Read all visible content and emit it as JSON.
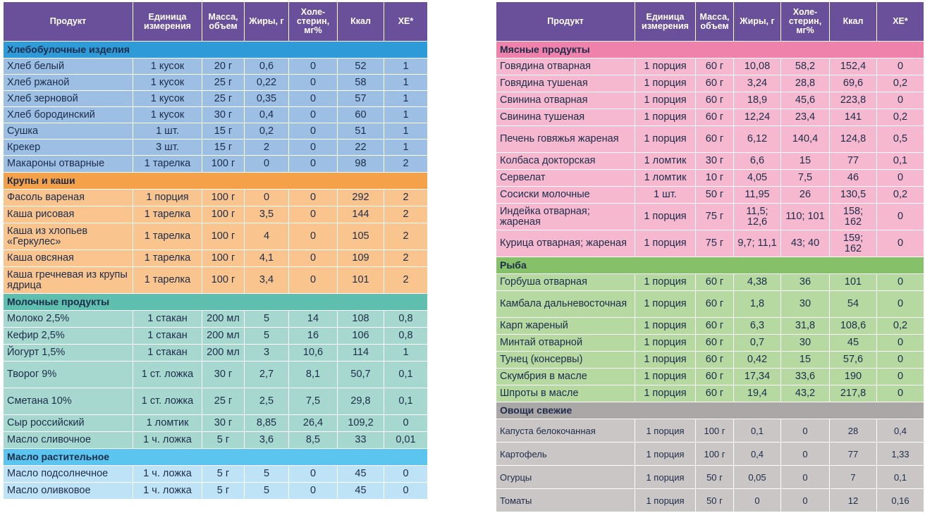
{
  "headers": [
    "Продукт",
    "Единица измерения",
    "Масса, объем",
    "Жиры, г",
    "Холе-стерин, мг%",
    "Ккал",
    "ХЕ*"
  ],
  "left": [
    {
      "title": "Хлебобулочные изделия",
      "rows": [
        [
          "Хлеб белый",
          "1 кусок",
          "20 г",
          "0,6",
          "0",
          "52",
          "1"
        ],
        [
          "Хлеб ржаной",
          "1 кусок",
          "25 г",
          "0,22",
          "0",
          "58",
          "1"
        ],
        [
          "Хлеб зерновой",
          "1 кусок",
          "25 г",
          "0,35",
          "0",
          "57",
          "1"
        ],
        [
          "Хлеб бородинский",
          "1 кусок",
          "30 г",
          "0,4",
          "0",
          "60",
          "1"
        ],
        [
          "Сушка",
          "1 шт.",
          "15 г",
          "0,2",
          "0",
          "51",
          "1"
        ],
        [
          "Крекер",
          "3 шт.",
          "15 г",
          "2",
          "0",
          "22",
          "1"
        ],
        [
          "Макароны отварные",
          "1 тарелка",
          "100 г",
          "0",
          "0",
          "98",
          "2"
        ]
      ]
    },
    {
      "title": "Крупы и каши",
      "rows": [
        [
          "Фасоль вареная",
          "1 порция",
          "100 г",
          "0",
          "0",
          "292",
          "2"
        ],
        [
          "Каша рисовая",
          "1 тарелка",
          "100 г",
          "3,5",
          "0",
          "144",
          "2"
        ],
        [
          "Каша из хлопьев «Геркулес»",
          "1 тарелка",
          "100 г",
          "4",
          "0",
          "105",
          "2"
        ],
        [
          "Каша овсяная",
          "1 тарелка",
          "100 г",
          "4,1",
          "0",
          "109",
          "2"
        ],
        [
          "Каша гречневая из крупы ядрица",
          "1 тарелка",
          "100 г",
          "3,4",
          "0",
          "101",
          "2"
        ]
      ]
    },
    {
      "title": "Молочные продукты",
      "rows": [
        [
          "Молоко 2,5%",
          "1 стакан",
          "200 мл",
          "5",
          "14",
          "108",
          "0,8"
        ],
        [
          "Кефир 2,5%",
          "1 стакан",
          "200 мл",
          "5",
          "16",
          "106",
          "0,8"
        ],
        [
          "Йогурт 1,5%",
          "1 стакан",
          "200 мл",
          "3",
          "10,6",
          "114",
          "1"
        ],
        [
          "Творог 9%",
          "1 ст. ложка",
          "30 г",
          "2,7",
          "8,1",
          "50,7",
          "0,1"
        ],
        [
          "Сметана 10%",
          "1 ст. ложка",
          "25 г",
          "2,5",
          "7,5",
          "29,8",
          "0,1"
        ],
        [
          "Сыр российский",
          "1 ломтик",
          "30 г",
          "8,85",
          "26,4",
          "109,2",
          "0"
        ],
        [
          "Масло сливочное",
          "1 ч. ложка",
          "5 г",
          "3,6",
          "8,5",
          "33",
          "0,01"
        ]
      ]
    },
    {
      "title": "Масло растительное",
      "rows": [
        [
          "Масло подсолнечное",
          "1 ч. ложка",
          "5 г",
          "5",
          "0",
          "45",
          "0"
        ],
        [
          "Масло оливковое",
          "1 ч. ложка",
          "5 г",
          "5",
          "0",
          "45",
          "0"
        ]
      ]
    }
  ],
  "right": [
    {
      "title": "Мясные продукты",
      "rows": [
        [
          "Говядина отварная",
          "1 порция",
          "60 г",
          "10,08",
          "58,2",
          "152,4",
          "0"
        ],
        [
          "Говядина тушеная",
          "1 порция",
          "60 г",
          "3,24",
          "28,8",
          "69,6",
          "0,2"
        ],
        [
          "Свинина отварная",
          "1 порция",
          "60 г",
          "18,9",
          "45,6",
          "223,8",
          "0"
        ],
        [
          "Свинина тушеная",
          "1 порция",
          "60 г",
          "12,24",
          "23,4",
          "141",
          "0,2"
        ],
        [
          "Печень говяжья жареная",
          "1 порция",
          "60 г",
          "6,12",
          "140,4",
          "124,8",
          "0,5"
        ],
        [
          "Колбаса докторская",
          "1 ломтик",
          "30 г",
          "6,6",
          "15",
          "77",
          "0,1"
        ],
        [
          "Сервелат",
          "1 ломтик",
          "10 г",
          "4,05",
          "7,5",
          "46",
          "0"
        ],
        [
          "Сосиски молочные",
          "1 шт.",
          "50 г",
          "11,95",
          "26",
          "130,5",
          "0,2"
        ],
        [
          "Индейка отварная; жареная",
          "1 порция",
          "75 г",
          "11,5; 12,6",
          "110; 101",
          "158; 162",
          "0"
        ],
        [
          "Курица отварная; жареная",
          "1 порция",
          "75 г",
          "9,7; 11,1",
          "43; 40",
          "159; 162",
          "0"
        ]
      ]
    },
    {
      "title": "Рыба",
      "rows": [
        [
          "Горбуша отварная",
          "1 порция",
          "60 г",
          "4,38",
          "36",
          "101",
          "0"
        ],
        [
          "Камбала дальневосточная",
          "1 порция",
          "60 г",
          "1,8",
          "30",
          "54",
          "0"
        ],
        [
          "Карп жареный",
          "1 порция",
          "60 г",
          "6,3",
          "31,8",
          "108,6",
          "0,2"
        ],
        [
          "Минтай отварной",
          "1 порция",
          "60 г",
          "0,7",
          "30",
          "45",
          "0"
        ],
        [
          "Тунец (консервы)",
          "1 порция",
          "60 г",
          "0,42",
          "15",
          "57,6",
          "0"
        ],
        [
          "Скумбрия в масле",
          "1 порция",
          "60 г",
          "17,34",
          "33,6",
          "190",
          "0"
        ],
        [
          "Шпроты в масле",
          "1 порция",
          "60 г",
          "19,4",
          "43,2",
          "217,8",
          "0"
        ]
      ]
    },
    {
      "title": "Овощи свежие",
      "rows": [
        [
          "Капуста белокочанная",
          "1 порция",
          "100 г",
          "0,1",
          "0",
          "28",
          "0,4"
        ],
        [
          "Картофель",
          "1 порция",
          "100 г",
          "0,4",
          "0",
          "77",
          "1,33"
        ],
        [
          "Огурцы",
          "1 порция",
          "50 г",
          "0,05",
          "0",
          "7",
          "0,1"
        ],
        [
          "Томаты",
          "1 порция",
          "50 г",
          "0",
          "0",
          "12",
          "0,16"
        ]
      ]
    }
  ]
}
